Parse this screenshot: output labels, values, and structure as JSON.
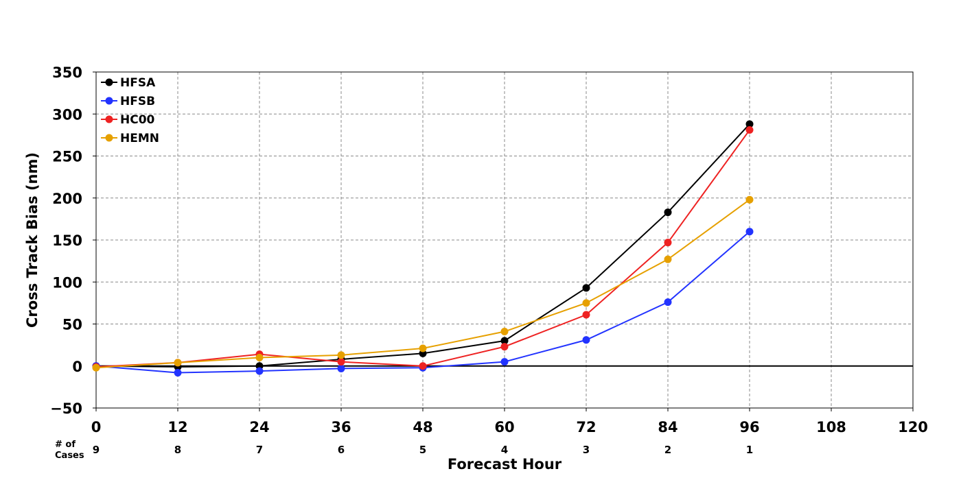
{
  "chart_data": {
    "type": "line",
    "title": "",
    "xlabel": "Forecast Hour",
    "ylabel": "Cross Track Bias (nm)",
    "xlim": [
      0,
      120
    ],
    "ylim": [
      -50,
      350
    ],
    "x_ticks": [
      0,
      12,
      24,
      36,
      48,
      60,
      72,
      84,
      96,
      108,
      120
    ],
    "y_ticks": [
      -50,
      0,
      50,
      100,
      150,
      200,
      250,
      300,
      350
    ],
    "y_tick_labels": [
      "−50",
      "0",
      "50",
      "100",
      "150",
      "200",
      "250",
      "300",
      "350"
    ],
    "grid": true,
    "legend_position": "top-left",
    "x": [
      0,
      12,
      24,
      36,
      48,
      60,
      72,
      84,
      96
    ],
    "series": [
      {
        "name": "HFSA",
        "color": "#000000",
        "values": [
          0,
          -1,
          0,
          8,
          15,
          30,
          93,
          183,
          288
        ]
      },
      {
        "name": "HFSB",
        "color": "#2233ff",
        "values": [
          0,
          -8,
          -6,
          -3,
          -2,
          5,
          31,
          76,
          160
        ]
      },
      {
        "name": "HC00",
        "color": "#ee2222",
        "values": [
          -1,
          4,
          14,
          5,
          0,
          23,
          61,
          147,
          281
        ]
      },
      {
        "name": "HEMN",
        "color": "#e6a000",
        "values": [
          -2,
          4,
          10,
          13,
          21,
          41,
          75,
          127,
          198
        ]
      }
    ],
    "cases": {
      "header_line1": "# of",
      "header_line2": "Cases",
      "values": [
        "9",
        "8",
        "7",
        "6",
        "5",
        "4",
        "3",
        "2",
        "1"
      ]
    }
  }
}
